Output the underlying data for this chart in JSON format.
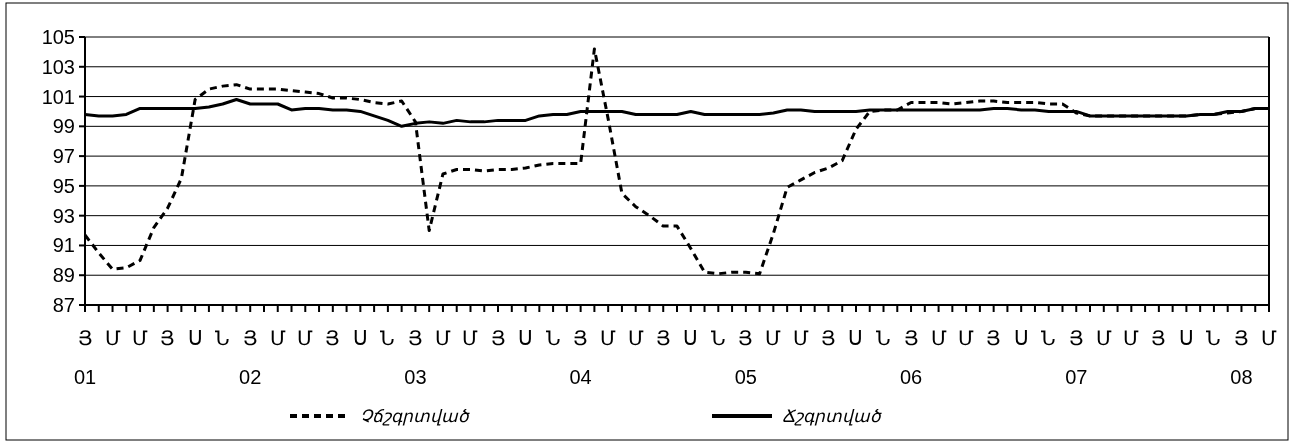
{
  "chart_data": {
    "type": "line",
    "categories": [
      "Յ\n01",
      null,
      "Մ",
      null,
      "Մ",
      null,
      "Յ",
      null,
      "Ս",
      null,
      "Ն",
      null,
      "Յ\n02",
      null,
      "Մ",
      null,
      "Մ",
      null,
      "Յ",
      null,
      "Ս",
      null,
      "Ն",
      null,
      "Յ\n03",
      null,
      "Մ",
      null,
      "Մ",
      null,
      "Յ",
      null,
      "Ս",
      null,
      "Ն",
      null,
      "Յ\n04",
      null,
      "Մ",
      null,
      "Մ",
      null,
      "Յ",
      null,
      "Ս",
      null,
      "Ն",
      null,
      "Յ\n05",
      null,
      "Մ",
      null,
      "Մ",
      null,
      "Յ",
      null,
      "Ս",
      null,
      "Ն",
      null,
      "Յ\n06",
      null,
      "Մ",
      null,
      "Մ",
      null,
      "Յ",
      null,
      "Ս",
      null,
      "Ն",
      null,
      "Յ\n07",
      null,
      "Մ",
      null,
      "Մ",
      null,
      "Յ",
      null,
      "Ս",
      null,
      "Ն",
      null,
      "Յ\n08",
      null,
      "Մ"
    ],
    "series": [
      {
        "name": "Չճշգրտված",
        "color": "#000000",
        "line_style": "dashed",
        "values": [
          91.7,
          90.5,
          89.4,
          89.5,
          90.0,
          92.2,
          93.5,
          95.5,
          100.8,
          101.5,
          101.7,
          101.8,
          101.5,
          101.5,
          101.5,
          101.4,
          101.3,
          101.2,
          100.9,
          100.9,
          100.8,
          100.6,
          100.5,
          100.7,
          99.3,
          92.0,
          95.8,
          96.1,
          96.1,
          96.0,
          96.1,
          96.1,
          96.2,
          96.4,
          96.5,
          96.5,
          96.5,
          104.2,
          99.5,
          94.5,
          93.6,
          93.0,
          92.3,
          92.3,
          90.8,
          89.2,
          89.1,
          89.2,
          89.2,
          89.1,
          91.8,
          94.9,
          95.4,
          95.9,
          96.2,
          96.7,
          98.8,
          100.0,
          100.1,
          100.1,
          100.6,
          100.6,
          100.6,
          100.5,
          100.6,
          100.7,
          100.7,
          100.6,
          100.6,
          100.6,
          100.5,
          100.5,
          99.9,
          99.7,
          99.7,
          99.7,
          99.7,
          99.7,
          99.7,
          99.7,
          99.7,
          99.8,
          99.8,
          99.9,
          100.0,
          100.2,
          100.2
        ]
      },
      {
        "name": "Ճշգրտված",
        "color": "#000000",
        "line_style": "solid",
        "values": [
          99.8,
          99.7,
          99.7,
          99.8,
          100.2,
          100.2,
          100.2,
          100.2,
          100.2,
          100.3,
          100.5,
          100.8,
          100.5,
          100.5,
          100.5,
          100.1,
          100.2,
          100.2,
          100.1,
          100.1,
          100.0,
          99.7,
          99.4,
          99.0,
          99.2,
          99.3,
          99.2,
          99.4,
          99.3,
          99.3,
          99.4,
          99.4,
          99.4,
          99.7,
          99.8,
          99.8,
          100.0,
          100.0,
          100.0,
          100.0,
          99.8,
          99.8,
          99.8,
          99.8,
          100.0,
          99.8,
          99.8,
          99.8,
          99.8,
          99.8,
          99.9,
          100.1,
          100.1,
          100.0,
          100.0,
          100.0,
          100.0,
          100.1,
          100.1,
          100.1,
          100.1,
          100.1,
          100.1,
          100.1,
          100.1,
          100.1,
          100.2,
          100.2,
          100.1,
          100.1,
          100.0,
          100.0,
          100.0,
          99.7,
          99.7,
          99.7,
          99.7,
          99.7,
          99.7,
          99.7,
          99.7,
          99.8,
          99.8,
          100.0,
          100.0,
          100.2,
          100.2
        ]
      }
    ],
    "ylim": [
      87,
      105
    ],
    "yticks": [
      87,
      89,
      91,
      93,
      95,
      97,
      99,
      101,
      103,
      105
    ],
    "grid": "y",
    "legend": "bottom"
  }
}
